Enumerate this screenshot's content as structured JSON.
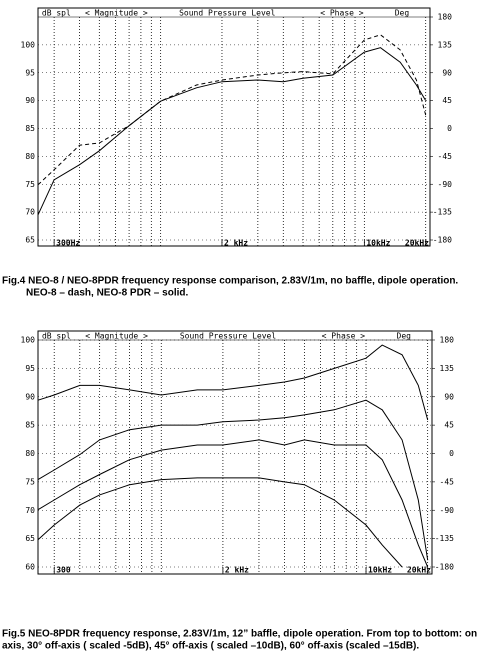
{
  "chart_data": [
    {
      "type": "line",
      "xscale": "log",
      "grid": true,
      "header": [
        "dB spl",
        "< Magnitude >",
        "Sound Pressure Level",
        "< Phase >",
        "Deg"
      ],
      "caption": [
        "Fig.4  NEO-8 / NEO-8PDR  frequency response comparison, 2.83V/1m, no baffle, dipole operation.",
        "NEO-8 – dash, NEO-8 PDR – solid."
      ],
      "x": [
        250,
        300,
        400,
        500,
        700,
        1000,
        1500,
        2000,
        3000,
        4000,
        5000,
        7000,
        10000,
        12000,
        15000,
        18000,
        20000
      ],
      "series": [
        {
          "color": "#000000",
          "dash": false,
          "values": [
            69.5,
            75.8,
            78.5,
            81,
            85.5,
            89.9,
            92.3,
            93.4,
            93.7,
            93.4,
            94,
            94.6,
            98.7,
            99.5,
            96.9,
            92.8,
            90
          ]
        },
        {
          "color": "#000000",
          "dash": true,
          "values": [
            74.9,
            77.6,
            82,
            82.4,
            85.5,
            89.9,
            92.8,
            93.7,
            94.6,
            95,
            95.2,
            94.8,
            100.9,
            101.8,
            99.1,
            93.7,
            87.4
          ]
        }
      ],
      "xlim": [
        250,
        21000
      ],
      "xticks": [
        {
          "value": 300,
          "label": "300Hz"
        },
        {
          "value": 2000,
          "label": "2 kHz"
        },
        {
          "value": 10000,
          "label": "10kHz"
        },
        {
          "value": 20000,
          "label": "20kHz"
        }
      ],
      "xminorticks": [
        300,
        400,
        500,
        600,
        700,
        800,
        900,
        1000,
        2000,
        3000,
        4000,
        5000,
        6000,
        7000,
        8000,
        9000,
        10000,
        20000
      ],
      "ylim": [
        65,
        105
      ],
      "yticks": [
        65,
        70,
        75,
        80,
        85,
        90,
        95,
        100
      ],
      "y2lim": [
        -180,
        180
      ],
      "y2ticks": [
        -180,
        -135,
        -90,
        -45,
        0,
        45,
        90,
        135,
        180
      ]
    },
    {
      "type": "line",
      "xscale": "log",
      "grid": true,
      "header": [
        "dB spl",
        "< Magnitude >",
        "Sound Pressure Level",
        "< Phase >",
        "Deg"
      ],
      "caption": [
        "Fig.5  NEO-8PDR   frequency response, 2.83V/1m, 12” baffle, dipole operation. From top to bottom: on",
        "axis, 30° off-axis ( scaled -5dB), 45° off-axis ( scaled –10dB), 60° off-axis (scaled –15dB)."
      ],
      "x": [
        250,
        300,
        400,
        500,
        700,
        1000,
        1500,
        2000,
        3000,
        4000,
        5000,
        7000,
        10000,
        12000,
        15000,
        18000,
        20000
      ],
      "series": [
        {
          "color": "#000000",
          "dash": false,
          "values": [
            89.4,
            90.3,
            92,
            92,
            91.2,
            90.3,
            91.2,
            91.2,
            92,
            92.6,
            93.3,
            95,
            96.8,
            99.1,
            97.4,
            92,
            85.9
          ]
        },
        {
          "color": "#000000",
          "dash": false,
          "values": [
            75.4,
            77.1,
            79.8,
            82.4,
            84.2,
            85,
            85,
            85.6,
            85.9,
            86.3,
            86.8,
            87.7,
            89.4,
            87.7,
            82.4,
            71.8,
            61.2
          ]
        },
        {
          "color": "#000000",
          "dash": false,
          "values": [
            70.1,
            71.8,
            74.5,
            76.3,
            78.9,
            80.6,
            81.5,
            81.5,
            82.4,
            81.5,
            82.4,
            81.5,
            81.5,
            78.9,
            71.8,
            63.9,
            60
          ]
        },
        {
          "color": "#000000",
          "dash": false,
          "values": [
            64.8,
            67.4,
            70.9,
            72.7,
            74.5,
            75.4,
            75.7,
            75.7,
            75.7,
            75,
            74.5,
            71.8,
            67.4,
            63.9,
            60,
            null,
            null
          ]
        }
      ],
      "xlim": [
        250,
        21000
      ],
      "xticks": [
        {
          "value": 300,
          "label": "300"
        },
        {
          "value": 2000,
          "label": "2 kHz"
        },
        {
          "value": 10000,
          "label": "10kHz"
        },
        {
          "value": 20000,
          "label": "20kHz"
        }
      ],
      "xminorticks": [
        300,
        400,
        500,
        600,
        700,
        800,
        900,
        1000,
        2000,
        3000,
        4000,
        5000,
        6000,
        7000,
        8000,
        9000,
        10000,
        20000
      ],
      "ylim": [
        60,
        100
      ],
      "yticks": [
        60,
        65,
        70,
        75,
        80,
        85,
        90,
        95,
        100
      ],
      "y2lim": [
        -180,
        180
      ],
      "y2ticks": [
        -180,
        -135,
        -90,
        -45,
        0,
        45,
        90,
        135,
        180
      ]
    }
  ]
}
